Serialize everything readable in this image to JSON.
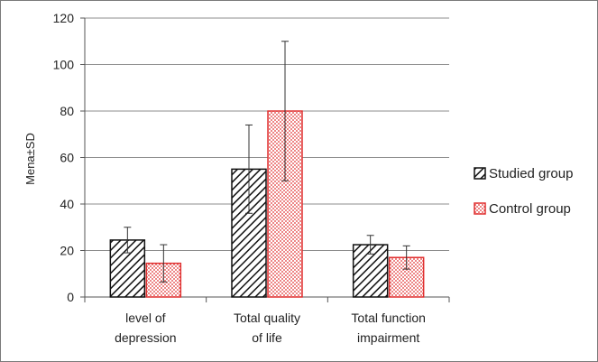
{
  "chart_data": {
    "type": "bar",
    "categories": [
      [
        "level of",
        "depression"
      ],
      [
        "Total quality",
        "of life"
      ],
      [
        "Total function",
        "impairment"
      ]
    ],
    "series": [
      {
        "name": "Studied group",
        "values": [
          24.5,
          55,
          22.5
        ],
        "errors": [
          5.5,
          19,
          4
        ]
      },
      {
        "name": "Control group",
        "values": [
          14.5,
          80,
          17
        ],
        "errors": [
          8,
          30,
          5
        ]
      }
    ],
    "ylabel": "Mena±SD",
    "ylim": [
      0,
      120
    ],
    "yticks": [
      0,
      20,
      40,
      60,
      80,
      100,
      120
    ],
    "grid": true,
    "legend_position": "right"
  }
}
